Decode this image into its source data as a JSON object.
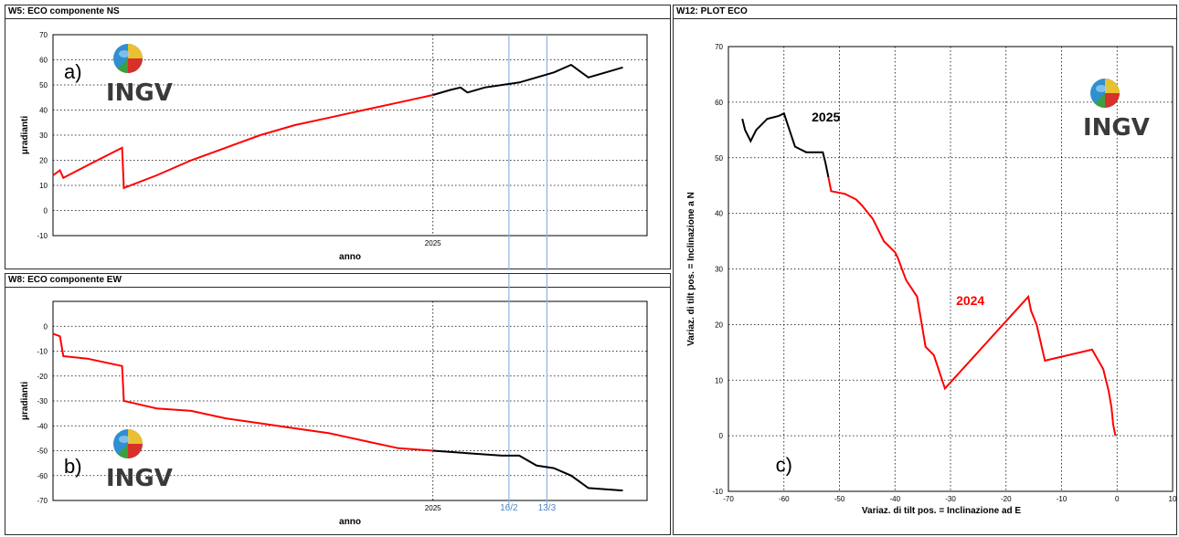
{
  "windows": {
    "w5": {
      "title": "W5: ECO componente NS"
    },
    "w8": {
      "title": "W8: ECO componente EW"
    },
    "w12": {
      "title": "W12: PLOT ECO"
    }
  },
  "logo": {
    "text": "INGV",
    "icon": "ingv-globe-logo"
  },
  "panels": {
    "a": "a)",
    "b": "b)",
    "c": "c)"
  },
  "markers": {
    "m1": "16/2",
    "m2": "13/3"
  },
  "year_labels": {
    "y2025": "2025",
    "y2024": "2024"
  },
  "colors": {
    "series_2024": "#ff0000",
    "series_2025": "#000000",
    "marker_line": "#8db4e2",
    "grid": "#000000"
  },
  "chart_data": [
    {
      "type": "line",
      "title": "W5: ECO componente NS",
      "xlabel": "anno",
      "ylabel": "μradianti",
      "ylim": [
        -10,
        70
      ],
      "yticks": [
        -10,
        0,
        10,
        20,
        30,
        40,
        50,
        60,
        70
      ],
      "xtick_labels": [
        "2025"
      ],
      "grid": true,
      "series": [
        {
          "values_2024": [
            [
              0,
              14
            ],
            [
              0.02,
              16
            ],
            [
              0.03,
              13
            ],
            [
              0.1,
              18
            ],
            [
              0.2,
              25
            ],
            [
              0.205,
              9
            ],
            [
              0.3,
              14
            ],
            [
              0.4,
              20
            ],
            [
              0.5,
              25
            ],
            [
              0.6,
              30
            ],
            [
              0.7,
              34
            ],
            [
              0.8,
              37
            ],
            [
              0.9,
              40
            ],
            [
              1.0,
              43
            ],
            [
              1.1,
              46
            ]
          ],
          "values_2025": [
            [
              1.1,
              46
            ],
            [
              1.15,
              48
            ],
            [
              1.18,
              49
            ],
            [
              1.2,
              47
            ],
            [
              1.25,
              49
            ],
            [
              1.35,
              51
            ],
            [
              1.4,
              53
            ],
            [
              1.45,
              55
            ],
            [
              1.5,
              58
            ],
            [
              1.53,
              55
            ],
            [
              1.55,
              53
            ],
            [
              1.6,
              55
            ],
            [
              1.65,
              57
            ]
          ]
        }
      ],
      "vlines": [
        "16/2",
        "13/3"
      ]
    },
    {
      "type": "line",
      "title": "W8: ECO componente EW",
      "xlabel": "anno",
      "ylabel": "μradianti",
      "ylim": [
        -70,
        10
      ],
      "yticks": [
        -70,
        -60,
        -50,
        -40,
        -30,
        -20,
        -10,
        0
      ],
      "xtick_labels": [
        "2025"
      ],
      "grid": true,
      "series": [
        {
          "values_2024": [
            [
              0,
              -3
            ],
            [
              0.02,
              -4
            ],
            [
              0.03,
              -12
            ],
            [
              0.1,
              -13
            ],
            [
              0.2,
              -16
            ],
            [
              0.205,
              -30
            ],
            [
              0.3,
              -33
            ],
            [
              0.4,
              -34
            ],
            [
              0.5,
              -37
            ],
            [
              0.6,
              -39
            ],
            [
              0.7,
              -41
            ],
            [
              0.8,
              -43
            ],
            [
              0.9,
              -46
            ],
            [
              1.0,
              -49
            ],
            [
              1.1,
              -50
            ]
          ],
          "values_2025": [
            [
              1.1,
              -50
            ],
            [
              1.2,
              -51
            ],
            [
              1.3,
              -52
            ],
            [
              1.35,
              -52
            ],
            [
              1.4,
              -56
            ],
            [
              1.45,
              -57
            ],
            [
              1.5,
              -60
            ],
            [
              1.55,
              -65
            ],
            [
              1.65,
              -66
            ]
          ]
        }
      ],
      "vlines": [
        "16/2",
        "13/3"
      ]
    },
    {
      "type": "line",
      "title": "W12: PLOT ECO",
      "xlabel": "Variaz. di tilt pos. = Inclinazione ad E",
      "ylabel": "Variaz. di tilt pos. = Inclinazione a N",
      "xlim": [
        -70,
        10
      ],
      "ylim": [
        -10,
        70
      ],
      "xticks": [
        -70,
        -60,
        -50,
        -40,
        -30,
        -20,
        -10,
        0,
        10
      ],
      "yticks": [
        -10,
        0,
        10,
        20,
        30,
        40,
        50,
        60,
        70
      ],
      "grid": true,
      "series": [
        {
          "name": "2024",
          "color": "#ff0000",
          "points": [
            [
              -0.3,
              0
            ],
            [
              -0.7,
              2
            ],
            [
              -1.0,
              5
            ],
            [
              -1.5,
              8
            ],
            [
              -2.5,
              12
            ],
            [
              -4.5,
              15.5
            ],
            [
              -13,
              13.5
            ],
            [
              -14.5,
              20
            ],
            [
              -15.5,
              22.5
            ],
            [
              -16,
              25
            ],
            [
              -31,
              8.5
            ],
            [
              -33,
              14.5
            ],
            [
              -34.5,
              16
            ],
            [
              -36,
              25
            ],
            [
              -38,
              28
            ],
            [
              -39.5,
              32
            ],
            [
              -40,
              33
            ],
            [
              -42,
              35
            ],
            [
              -44,
              39
            ],
            [
              -46,
              41.5
            ],
            [
              -47,
              42.5
            ],
            [
              -49,
              43.5
            ],
            [
              -51.5,
              44
            ],
            [
              -52,
              46.5
            ]
          ]
        },
        {
          "name": "2025",
          "color": "#000000",
          "points": [
            [
              -52,
              46.5
            ],
            [
              -52.5,
              49
            ],
            [
              -53,
              51
            ],
            [
              -54,
              51
            ],
            [
              -56,
              51
            ],
            [
              -58,
              52
            ],
            [
              -59,
              55
            ],
            [
              -60,
              58
            ],
            [
              -61,
              57.5
            ],
            [
              -63,
              57
            ],
            [
              -65,
              55
            ],
            [
              -66,
              53
            ],
            [
              -67,
              55
            ],
            [
              -67.5,
              57
            ]
          ]
        }
      ]
    }
  ]
}
